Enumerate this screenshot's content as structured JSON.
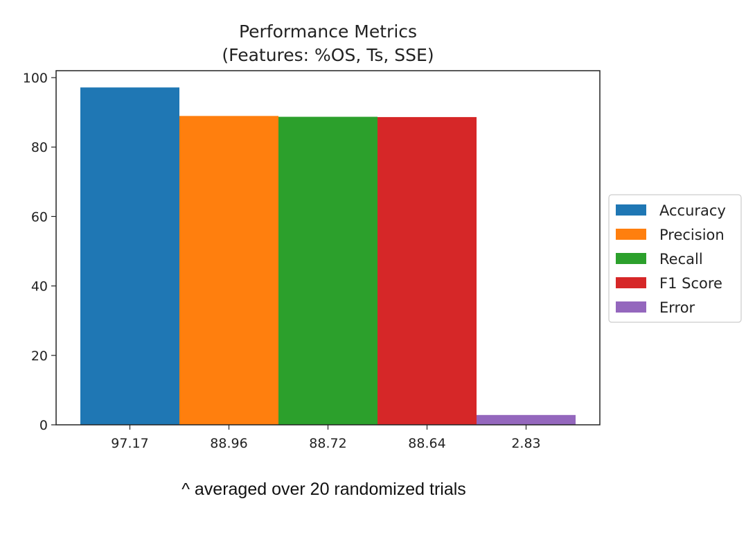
{
  "caption": "^ averaged over 20 randomized trials",
  "chart_data": {
    "type": "bar",
    "title": "Performance Metrics",
    "subtitle": "(Features: %OS, Ts, SSE)",
    "categories": [
      "97.17",
      "88.96",
      "88.72",
      "88.64",
      "2.83"
    ],
    "series": [
      {
        "name": "Accuracy",
        "value": 97.17,
        "color": "#1f77b4"
      },
      {
        "name": "Precision",
        "value": 88.96,
        "color": "#ff7f0e"
      },
      {
        "name": "Recall",
        "value": 88.72,
        "color": "#2ca02c"
      },
      {
        "name": "F1 Score",
        "value": 88.64,
        "color": "#d62728"
      },
      {
        "name": "Error",
        "value": 2.83,
        "color": "#9467bd"
      }
    ],
    "y_ticks": [
      0,
      20,
      40,
      60,
      80,
      100
    ],
    "ylim": [
      0,
      102
    ],
    "grid": false,
    "legend_position": "center-right outside"
  }
}
